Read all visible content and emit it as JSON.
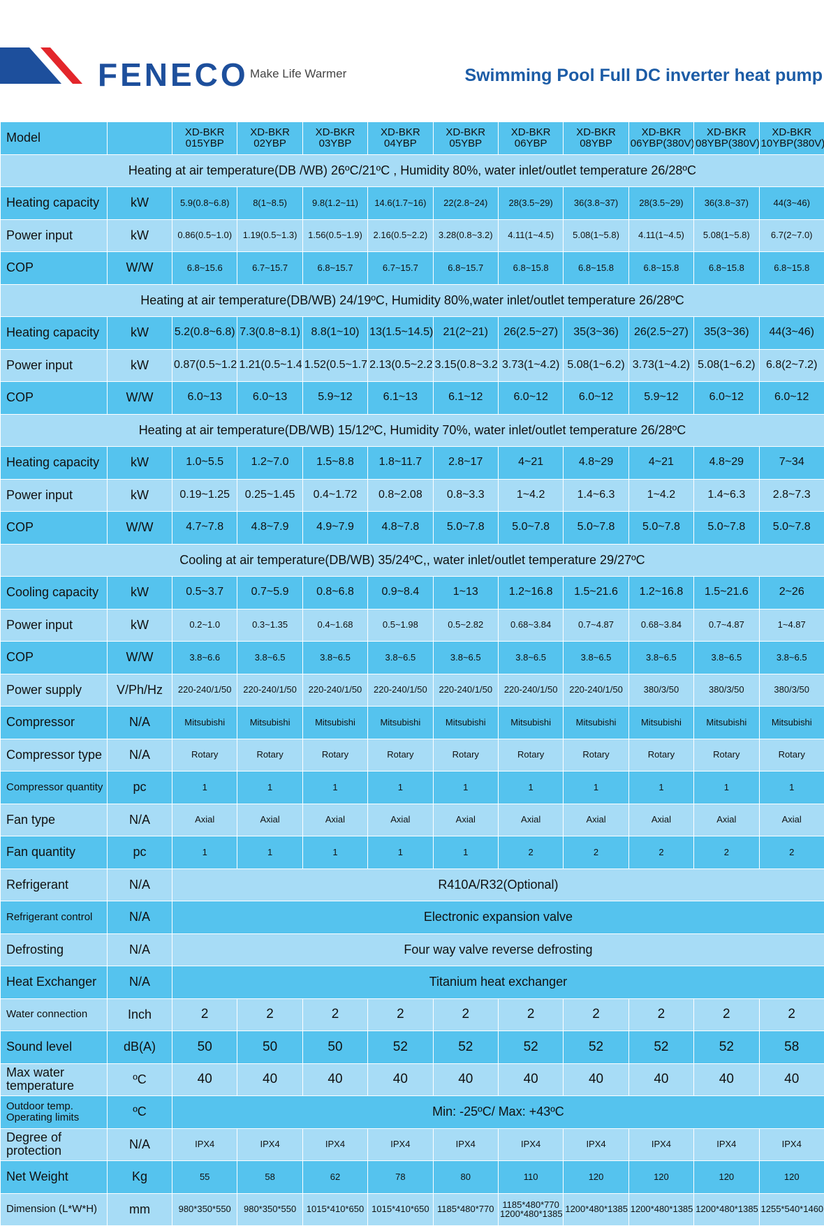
{
  "header": {
    "brand": "FENECO",
    "tagline": "Make Life Warmer",
    "title": "Swimming Pool Full DC inverter heat pump"
  },
  "table": {
    "header": {
      "label": "Model",
      "models": [
        [
          "XD-BKR",
          "015YBP"
        ],
        [
          "XD-BKR",
          "02YBP"
        ],
        [
          "XD-BKR",
          "03YBP"
        ],
        [
          "XD-BKR",
          "04YBP"
        ],
        [
          "XD-BKR",
          "05YBP"
        ],
        [
          "XD-BKR",
          "06YBP"
        ],
        [
          "XD-BKR",
          "08YBP"
        ],
        [
          "XD-BKR",
          "06YBP(380V)"
        ],
        [
          "XD-BKR",
          "08YBP(380V)"
        ],
        [
          "XD-BKR",
          "10YBP(380V)"
        ]
      ]
    },
    "rows": [
      {
        "section": "Heating at air temperature(DB /WB) 26ºC/21ºC , Humidity 80%, water inlet/outlet temperature 26/28ºC"
      },
      {
        "label": "Heating capacity",
        "unit": "kW",
        "values": [
          "5.9(0.8~6.8)",
          "8(1~8.5)",
          "9.8(1.2~11)",
          "14.6(1.7~16)",
          "22(2.8~24)",
          "28(3.5~29)",
          "36(3.8~37)",
          "28(3.5~29)",
          "36(3.8~37)",
          "44(3~46)"
        ]
      },
      {
        "label": "Power input",
        "unit": "kW",
        "values": [
          "0.86(0.5~1.0)",
          "1.19(0.5~1.3)",
          "1.56(0.5~1.9)",
          "2.16(0.5~2.2)",
          "3.28(0.8~3.2)",
          "4.11(1~4.5)",
          "5.08(1~5.8)",
          "4.11(1~4.5)",
          "5.08(1~5.8)",
          "6.7(2~7.0)"
        ]
      },
      {
        "label": "COP",
        "unit": "W/W",
        "values": [
          "6.8~15.6",
          "6.7~15.7",
          "6.8~15.7",
          "6.7~15.7",
          "6.8~15.7",
          "6.8~15.8",
          "6.8~15.8",
          "6.8~15.8",
          "6.8~15.8",
          "6.8~15.8"
        ]
      },
      {
        "section": "Heating at air temperature(DB/WB) 24/19ºC, Humidity 80%,water inlet/outlet temperature 26/28ºC"
      },
      {
        "label": "Heating capacity",
        "unit": "kW",
        "values": [
          "5.2(0.8~6.8)",
          "7.3(0.8~8.1)",
          "8.8(1~10)",
          "13(1.5~14.5)",
          "21(2~21)",
          "26(2.5~27)",
          "35(3~36)",
          "26(2.5~27)",
          "35(3~36)",
          "44(3~46)"
        ]
      },
      {
        "label": "Power input",
        "unit": "kW",
        "values": [
          "0.87(0.5~1.2)",
          "1.21(0.5~1.4)",
          "1.52(0.5~1.7)",
          "2.13(0.5~2.2)",
          "3.15(0.8~3.2)",
          "3.73(1~4.2)",
          "5.08(1~6.2)",
          "3.73(1~4.2)",
          "5.08(1~6.2)",
          "6.8(2~7.2)"
        ]
      },
      {
        "label": "COP",
        "unit": "W/W",
        "values": [
          "6.0~13",
          "6.0~13",
          "5.9~12",
          "6.1~13",
          "6.1~12",
          "6.0~12",
          "6.0~12",
          "5.9~12",
          "6.0~12",
          "6.0~12"
        ]
      },
      {
        "section": "Heating at air temperature(DB/WB) 15/12ºC, Humidity 70%, water inlet/outlet temperature 26/28ºC"
      },
      {
        "label": "Heating capacity",
        "unit": "kW",
        "values": [
          "1.0~5.5",
          "1.2~7.0",
          "1.5~8.8",
          "1.8~11.7",
          "2.8~17",
          "4~21",
          "4.8~29",
          "4~21",
          "4.8~29",
          "7~34"
        ]
      },
      {
        "label": "Power input",
        "unit": "kW",
        "values": [
          "0.19~1.25",
          "0.25~1.45",
          "0.4~1.72",
          "0.8~2.08",
          "0.8~3.3",
          "1~4.2",
          "1.4~6.3",
          "1~4.2",
          "1.4~6.3",
          "2.8~7.3"
        ]
      },
      {
        "label": "COP",
        "unit": "W/W",
        "values": [
          "4.7~7.8",
          "4.8~7.9",
          "4.9~7.9",
          "4.8~7.8",
          "5.0~7.8",
          "5.0~7.8",
          "5.0~7.8",
          "5.0~7.8",
          "5.0~7.8",
          "5.0~7.8"
        ]
      },
      {
        "section": "Cooling at air temperature(DB/WB) 35/24ºC,, water inlet/outlet temperature 29/27ºC"
      },
      {
        "label": "Cooling capacity",
        "unit": "kW",
        "values": [
          "0.5~3.7",
          "0.7~5.9",
          "0.8~6.8",
          "0.9~8.4",
          "1~13",
          "1.2~16.8",
          "1.5~21.6",
          "1.2~16.8",
          "1.5~21.6",
          "2~26"
        ]
      },
      {
        "label": "Power input",
        "unit": "kW",
        "values": [
          "0.2~1.0",
          "0.3~1.35",
          "0.4~1.68",
          "0.5~1.98",
          "0.5~2.82",
          "0.68~3.84",
          "0.7~4.87",
          "0.68~3.84",
          "0.7~4.87",
          "1~4.87"
        ]
      },
      {
        "label": "COP",
        "unit": "W/W",
        "values": [
          "3.8~6.6",
          "3.8~6.5",
          "3.8~6.5",
          "3.8~6.5",
          "3.8~6.5",
          "3.8~6.5",
          "3.8~6.5",
          "3.8~6.5",
          "3.8~6.5",
          "3.8~6.5"
        ]
      },
      {
        "label": "Power supply",
        "unit": "V/Ph/Hz",
        "values": [
          "220-240/1/50",
          "220-240/1/50",
          "220-240/1/50",
          "220-240/1/50",
          "220-240/1/50",
          "220-240/1/50",
          "220-240/1/50",
          "380/3/50",
          "380/3/50",
          "380/3/50"
        ]
      },
      {
        "label": "Compressor",
        "unit": "N/A",
        "values": [
          "Mitsubishi",
          "Mitsubishi",
          "Mitsubishi",
          "Mitsubishi",
          "Mitsubishi",
          "Mitsubishi",
          "Mitsubishi",
          "Mitsubishi",
          "Mitsubishi",
          "Mitsubishi"
        ]
      },
      {
        "label": "Compressor type",
        "unit": "N/A",
        "values": [
          "Rotary",
          "Rotary",
          "Rotary",
          "Rotary",
          "Rotary",
          "Rotary",
          "Rotary",
          "Rotary",
          "Rotary",
          "Rotary"
        ]
      },
      {
        "label": "Compressor quantity",
        "unit": "pc",
        "values": [
          "1",
          "1",
          "1",
          "1",
          "1",
          "1",
          "1",
          "1",
          "1",
          "1"
        ]
      },
      {
        "label": "Fan type",
        "unit": "N/A",
        "values": [
          "Axial",
          "Axial",
          "Axial",
          "Axial",
          "Axial",
          "Axial",
          "Axial",
          "Axial",
          "Axial",
          "Axial"
        ]
      },
      {
        "label": "Fan quantity",
        "unit": "pc",
        "values": [
          "1",
          "1",
          "1",
          "1",
          "1",
          "2",
          "2",
          "2",
          "2",
          "2"
        ]
      },
      {
        "label": "Refrigerant",
        "unit": "N/A",
        "value": "R410A/R32(Optional)"
      },
      {
        "label": "Refrigerant control",
        "unit": "N/A",
        "value": "Electronic expansion valve"
      },
      {
        "label": "Defrosting",
        "unit": "N/A",
        "value": "Four way valve reverse defrosting"
      },
      {
        "label": "Heat Exchanger",
        "unit": "N/A",
        "value": "Titanium heat exchanger"
      },
      {
        "label": "Water connection",
        "unit": "Inch",
        "values": [
          "2",
          "2",
          "2",
          "2",
          "2",
          "2",
          "2",
          "2",
          "2",
          "2"
        ]
      },
      {
        "label": "Sound level",
        "unit": "dB(A)",
        "values": [
          "50",
          "50",
          "50",
          "52",
          "52",
          "52",
          "52",
          "52",
          "52",
          "58"
        ]
      },
      {
        "label": "Max water temperature",
        "unit": "ºC",
        "values": [
          "40",
          "40",
          "40",
          "40",
          "40",
          "40",
          "40",
          "40",
          "40",
          "40"
        ]
      },
      {
        "label": "Outdoor temp. Operating limits",
        "unit": "ºC",
        "value": "Min: -25ºC/ Max: +43ºC"
      },
      {
        "label": "Degree of protection",
        "unit": "N/A",
        "values": [
          "IPX4",
          "IPX4",
          "IPX4",
          "IPX4",
          "IPX4",
          "IPX4",
          "IPX4",
          "IPX4",
          "IPX4",
          "IPX4"
        ]
      },
      {
        "label": "Net Weight",
        "unit": "Kg",
        "values": [
          "55",
          "58",
          "62",
          "78",
          "80",
          "110",
          "120",
          "120",
          "120",
          "120"
        ]
      },
      {
        "label": "Dimension (L*W*H)",
        "unit": "mm",
        "values": [
          "980*350*550",
          "980*350*550",
          "1015*410*650",
          "1015*410*650",
          "1185*480*770",
          [
            "1185*480*770",
            "1200*480*1385"
          ],
          "1200*480*1385",
          "1200*480*1385",
          "1200*480*1385",
          "1255*540*1460"
        ]
      }
    ]
  }
}
